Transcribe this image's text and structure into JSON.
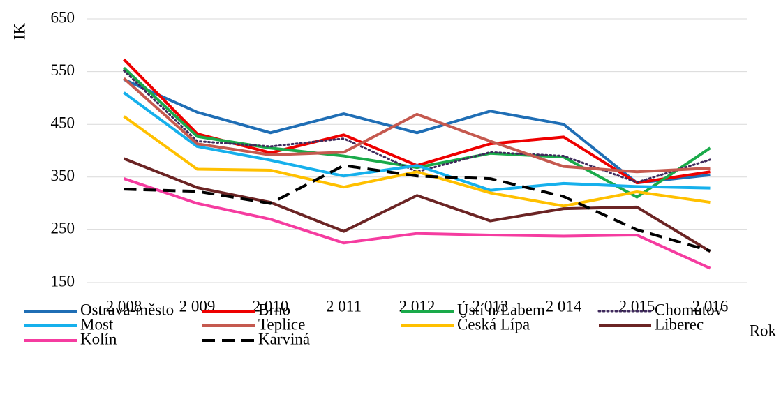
{
  "chart_data": {
    "type": "line",
    "y_label": "IK",
    "x_label": "Rok",
    "categories": [
      "2 008",
      "2 009",
      "2 010",
      "2 011",
      "2 012",
      "2 013",
      "2 014",
      "2 015",
      "2 016"
    ],
    "ylim": [
      150,
      650
    ],
    "yticks": [
      150,
      250,
      350,
      450,
      550,
      650
    ],
    "grid": true,
    "legend": "bottom",
    "series": [
      {
        "name": "Ostrava-město",
        "color": "#1f6eb5",
        "values": [
          535,
          473,
          434,
          470,
          434,
          475,
          450,
          339,
          354
        ]
      },
      {
        "name": "Brno",
        "color": "#ee0000",
        "values": [
          573,
          432,
          396,
          430,
          372,
          413,
          426,
          339,
          360
        ]
      },
      {
        "name": "Ústí n/Labem",
        "color": "#1aaa4a",
        "values": [
          557,
          427,
          405,
          390,
          368,
          395,
          388,
          312,
          405
        ]
      },
      {
        "name": "Chomutov",
        "color": "#3f2a5c",
        "dash": "dotted",
        "values": [
          552,
          418,
          408,
          423,
          360,
          397,
          390,
          340,
          383
        ]
      },
      {
        "name": "Most",
        "color": "#16b0ec",
        "values": [
          510,
          408,
          382,
          352,
          372,
          325,
          338,
          332,
          329
        ]
      },
      {
        "name": "Teplice",
        "color": "#c5594f",
        "values": [
          537,
          413,
          392,
          397,
          469,
          418,
          370,
          360,
          367
        ]
      },
      {
        "name": "Česká Lípa",
        "color": "#ffc000",
        "values": [
          465,
          365,
          363,
          331,
          360,
          320,
          295,
          322,
          302
        ]
      },
      {
        "name": "Liberec",
        "color": "#6b2424",
        "values": [
          385,
          330,
          302,
          247,
          315,
          267,
          290,
          293,
          209
        ]
      },
      {
        "name": "Kolín",
        "color": "#f53ca0",
        "values": [
          347,
          300,
          270,
          225,
          243,
          240,
          238,
          240,
          177
        ]
      },
      {
        "name": "Karviná",
        "color": "#000000",
        "dash": "dashed",
        "values": [
          327,
          323,
          300,
          372,
          352,
          347,
          313,
          250,
          210
        ]
      }
    ]
  }
}
